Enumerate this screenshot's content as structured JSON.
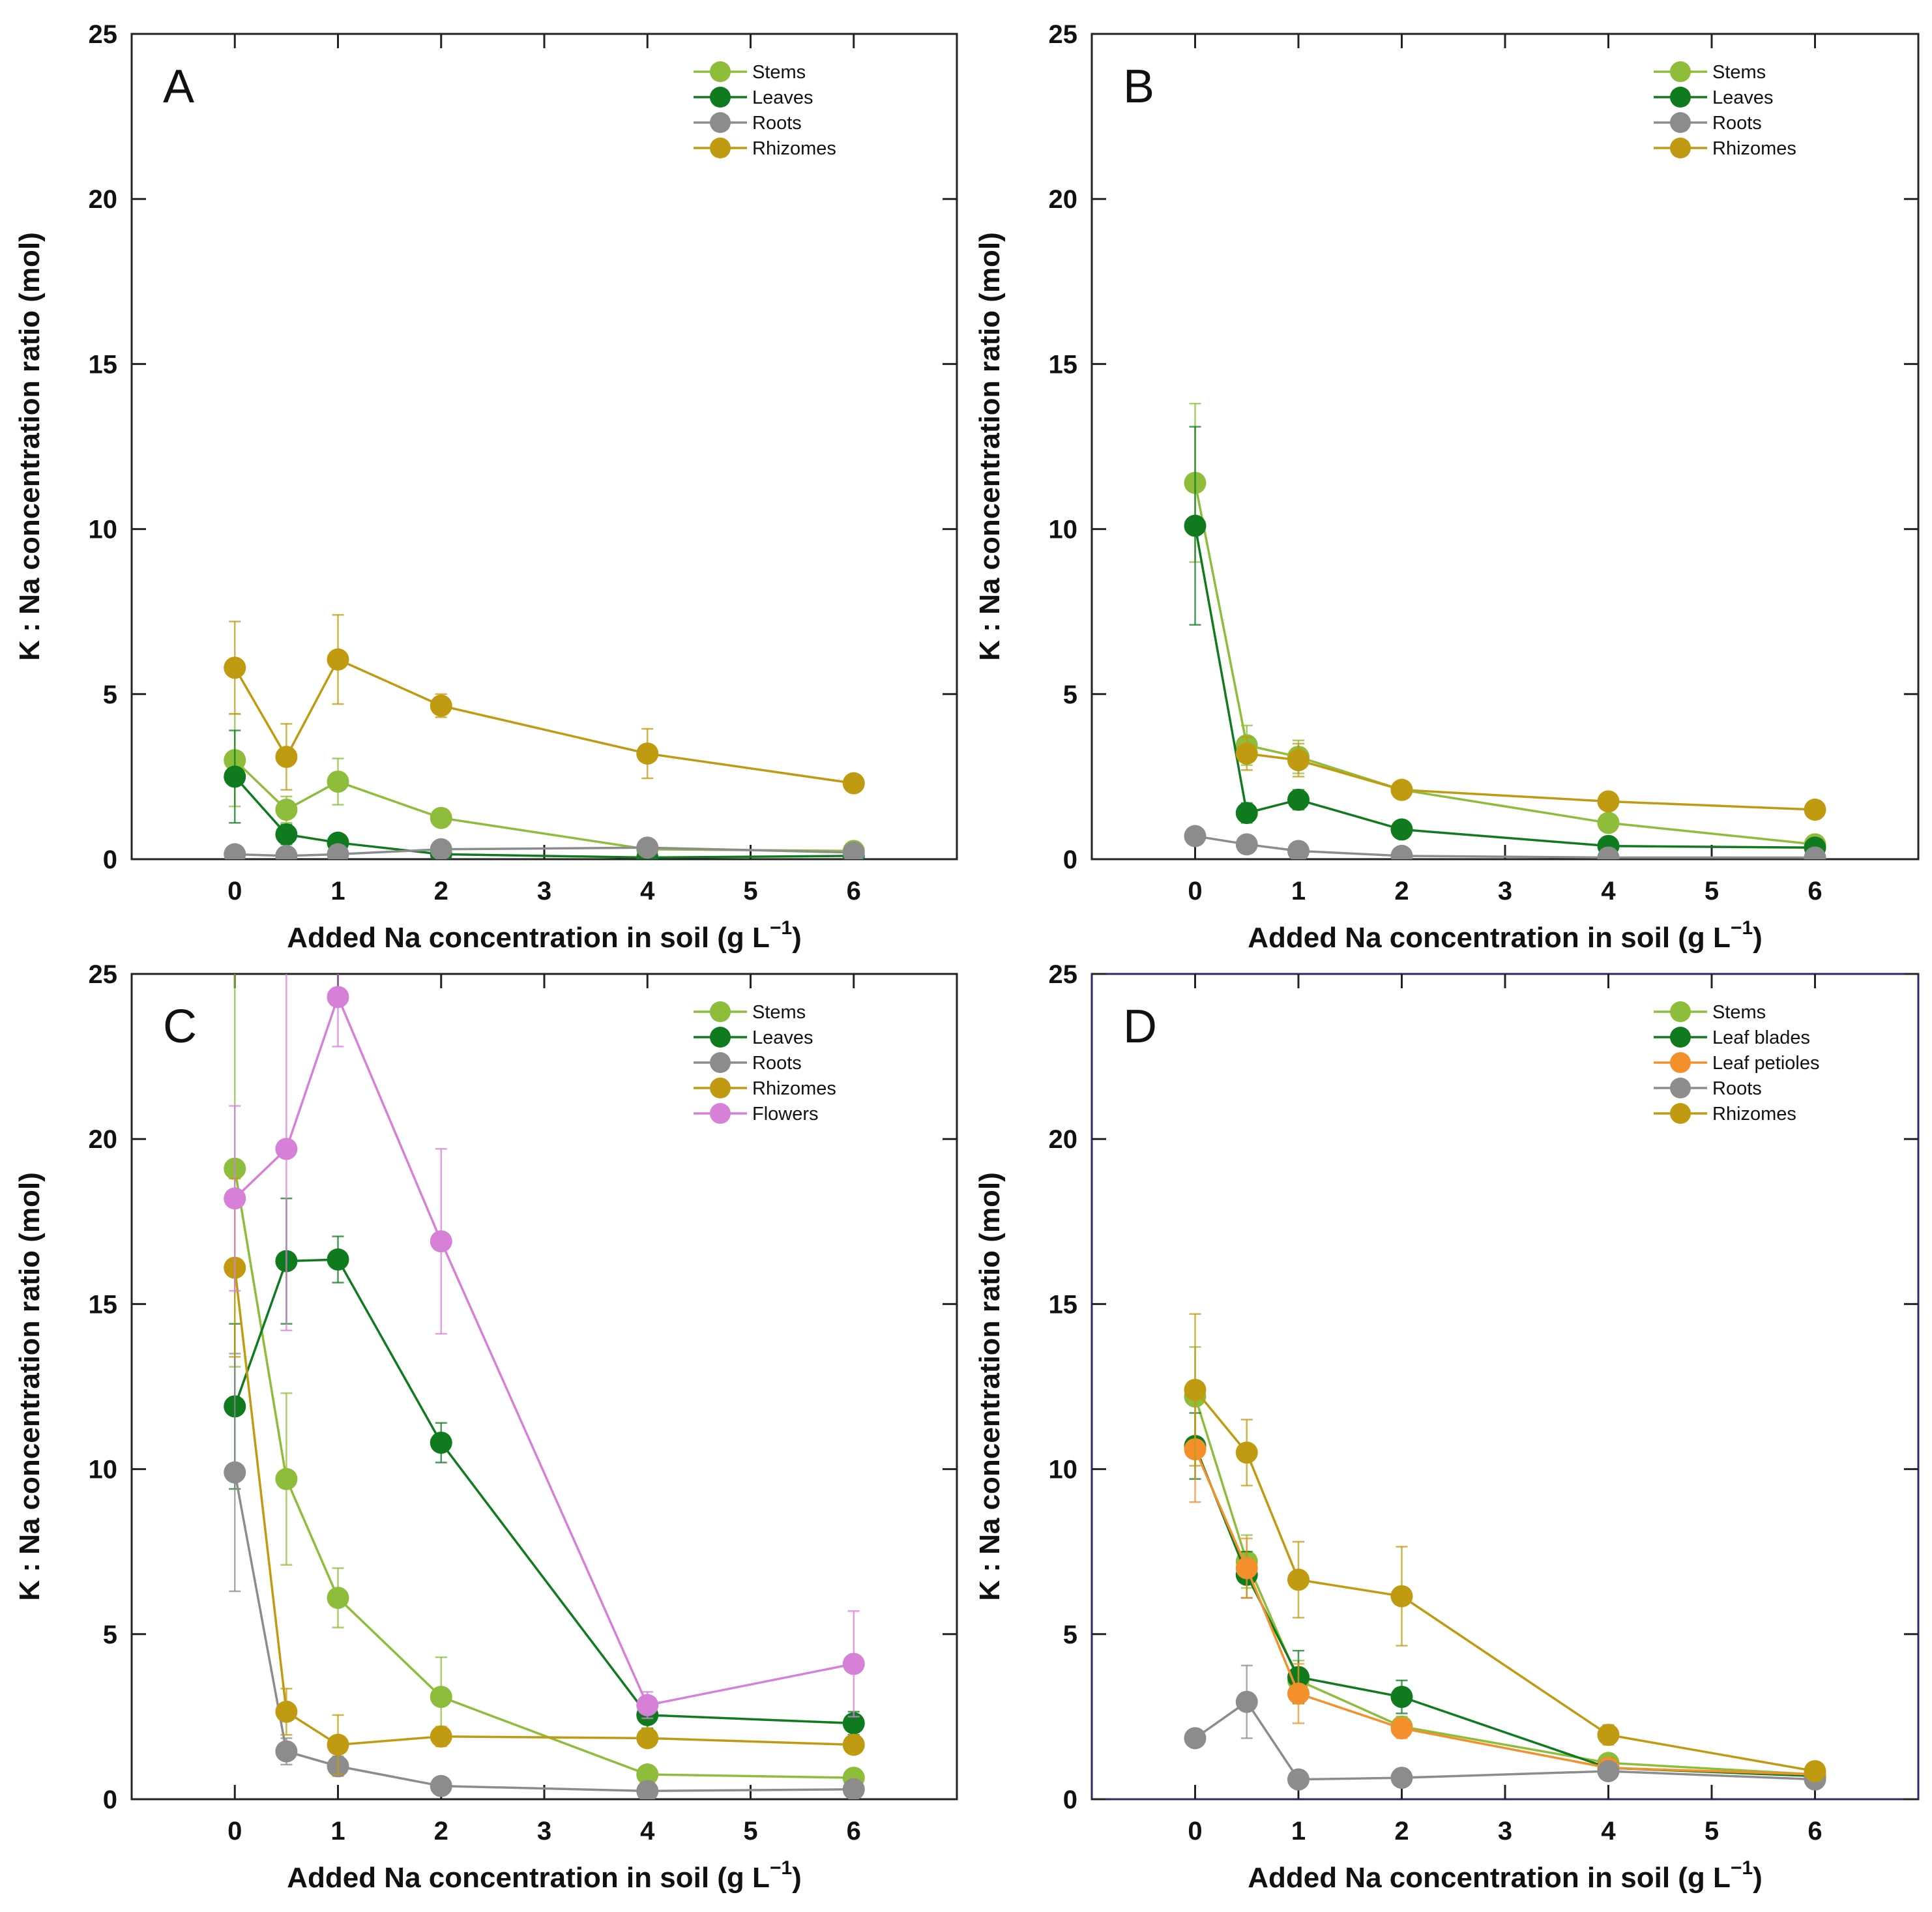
{
  "chart_data": [
    {
      "panel": "A",
      "type": "line",
      "xlabel": "Added Na concentration in soil (g L",
      "xlabel_sup": "−1",
      "xlabel_end": ")",
      "ylabel": "K : Na concentration ratio (mol)",
      "xlim": [
        -1,
        7
      ],
      "ylim": [
        0,
        25
      ],
      "xticks": [
        0,
        1,
        2,
        3,
        4,
        5,
        6
      ],
      "yticks": [
        0,
        5,
        10,
        15,
        20,
        25
      ],
      "x": [
        0,
        0.5,
        1,
        2,
        4,
        6
      ],
      "series": [
        {
          "name": "Stems",
          "color": "#8dbd3a",
          "values": [
            3.0,
            1.5,
            2.35,
            1.25,
            0.3,
            0.25
          ],
          "errors": [
            1.4,
            0.4,
            0.7,
            0.2,
            0.1,
            0.1
          ]
        },
        {
          "name": "Leaves",
          "color": "#0f7b1e",
          "values": [
            2.5,
            0.75,
            0.5,
            0.15,
            0.05,
            0.1
          ],
          "errors": [
            1.4,
            0.3,
            0.2,
            0.05,
            0.05,
            0.05
          ]
        },
        {
          "name": "Roots",
          "color": "#8c8c8c",
          "values": [
            0.15,
            0.1,
            0.15,
            0.3,
            0.35,
            0.2
          ],
          "errors": [
            0.05,
            0.05,
            0.05,
            0.1,
            0.1,
            0.05
          ]
        },
        {
          "name": "Rhizomes",
          "color": "#c09a10",
          "values": [
            5.8,
            3.1,
            6.05,
            4.65,
            3.2,
            2.3
          ],
          "errors": [
            1.4,
            1.0,
            1.35,
            0.35,
            0.75,
            0.2
          ]
        }
      ]
    },
    {
      "panel": "B",
      "type": "line",
      "xlabel": "Added Na concentration in soil (g L",
      "xlabel_sup": "−1",
      "xlabel_end": ")",
      "ylabel": "K : Na concentration ratio (mol)",
      "xlim": [
        -1,
        7
      ],
      "ylim": [
        0,
        25
      ],
      "xticks": [
        0,
        1,
        2,
        3,
        4,
        5,
        6
      ],
      "yticks": [
        0,
        5,
        10,
        15,
        20,
        25
      ],
      "x": [
        0,
        0.5,
        1,
        2,
        4,
        6
      ],
      "series": [
        {
          "name": "Stems",
          "color": "#8dbd3a",
          "values": [
            11.4,
            3.45,
            3.1,
            2.1,
            1.1,
            0.45
          ],
          "errors": [
            2.4,
            0.6,
            0.5,
            0.2,
            0.2,
            0.1
          ]
        },
        {
          "name": "Leaves",
          "color": "#0f7b1e",
          "values": [
            10.1,
            1.4,
            1.8,
            0.9,
            0.4,
            0.35
          ],
          "errors": [
            3.0,
            0.3,
            0.3,
            0.2,
            0.1,
            0.1
          ]
        },
        {
          "name": "Roots",
          "color": "#8c8c8c",
          "values": [
            0.7,
            0.45,
            0.25,
            0.1,
            0.05,
            0.05
          ],
          "errors": [
            0.1,
            0.1,
            0.05,
            0.05,
            0.02,
            0.02
          ]
        },
        {
          "name": "Rhizomes",
          "color": "#c09a10",
          "values": [
            null,
            3.2,
            3.0,
            2.1,
            1.75,
            1.5
          ],
          "errors": [
            0,
            0.5,
            0.5,
            0.2,
            0.2,
            0.25
          ]
        }
      ]
    },
    {
      "panel": "C",
      "type": "line",
      "xlabel": "Added Na concentration in soil (g L",
      "xlabel_sup": "−1",
      "xlabel_end": ")",
      "ylabel": "K : Na concentration ratio (mol)",
      "xlim": [
        -1,
        7
      ],
      "ylim": [
        0,
        25
      ],
      "xticks": [
        0,
        1,
        2,
        3,
        4,
        5,
        6
      ],
      "yticks": [
        0,
        5,
        10,
        15,
        20,
        25
      ],
      "x": [
        0,
        0.5,
        1,
        2,
        4,
        6
      ],
      "series": [
        {
          "name": "Stems",
          "color": "#8dbd3a",
          "values": [
            19.1,
            9.7,
            6.1,
            3.1,
            0.75,
            0.65
          ],
          "errors": [
            6.0,
            2.6,
            0.9,
            1.2,
            0.2,
            0.15
          ]
        },
        {
          "name": "Leaves",
          "color": "#0f7b1e",
          "values": [
            11.9,
            16.3,
            16.35,
            10.8,
            2.55,
            2.3
          ],
          "errors": [
            2.5,
            1.9,
            0.7,
            0.6,
            0.4,
            0.35
          ]
        },
        {
          "name": "Roots",
          "color": "#8c8c8c",
          "values": [
            9.9,
            1.45,
            1.0,
            0.4,
            0.25,
            0.3
          ],
          "errors": [
            3.6,
            0.4,
            0.3,
            0.1,
            0.05,
            0.05
          ]
        },
        {
          "name": "Rhizomes",
          "color": "#c09a10",
          "values": [
            16.1,
            2.65,
            1.65,
            1.9,
            1.85,
            1.65
          ],
          "errors": [
            2.7,
            0.7,
            0.9,
            0.3,
            0.2,
            0.2
          ]
        },
        {
          "name": "Flowers",
          "color": "#d780d8",
          "values": [
            18.2,
            19.7,
            24.3,
            16.9,
            2.85,
            4.1
          ],
          "errors": [
            2.8,
            5.5,
            1.5,
            2.8,
            0.4,
            1.6
          ]
        }
      ]
    },
    {
      "panel": "D",
      "type": "line",
      "xlabel": "Added Na concentration in soil (g L",
      "xlabel_sup": "−1",
      "xlabel_end": ")",
      "ylabel": "K : Na concentration ratio (mol)",
      "xlim": [
        -1,
        7
      ],
      "ylim": [
        0,
        25
      ],
      "xticks": [
        0,
        1,
        2,
        3,
        4,
        5,
        6
      ],
      "yticks": [
        0,
        5,
        10,
        15,
        20,
        25
      ],
      "x": [
        0,
        0.5,
        1,
        2,
        4,
        6
      ],
      "series": [
        {
          "name": "Stems",
          "color": "#8dbd3a",
          "values": [
            12.2,
            7.2,
            3.6,
            2.2,
            1.1,
            0.75
          ],
          "errors": [
            1.5,
            0.8,
            0.6,
            0.3,
            0.2,
            0.1
          ]
        },
        {
          "name": "Leaf blades",
          "color": "#0f7b1e",
          "values": [
            10.7,
            6.8,
            3.7,
            3.1,
            0.95,
            0.7
          ],
          "errors": [
            1.0,
            0.7,
            0.8,
            0.5,
            0.2,
            0.1
          ]
        },
        {
          "name": "Leaf petioles",
          "color": "#f3902c",
          "values": [
            10.6,
            7.0,
            3.2,
            2.15,
            0.95,
            0.75
          ],
          "errors": [
            1.6,
            0.9,
            0.9,
            0.3,
            0.2,
            0.1
          ]
        },
        {
          "name": "Roots",
          "color": "#8c8c8c",
          "values": [
            1.85,
            2.95,
            0.6,
            0.65,
            0.85,
            0.6
          ],
          "errors": [
            0.2,
            1.1,
            0.1,
            0.1,
            0.1,
            0.1
          ]
        },
        {
          "name": "Rhizomes",
          "color": "#c09a10",
          "values": [
            12.4,
            10.5,
            6.65,
            6.15,
            1.95,
            0.85
          ],
          "errors": [
            2.3,
            1.0,
            1.15,
            1.5,
            0.3,
            0.1
          ]
        }
      ]
    }
  ]
}
